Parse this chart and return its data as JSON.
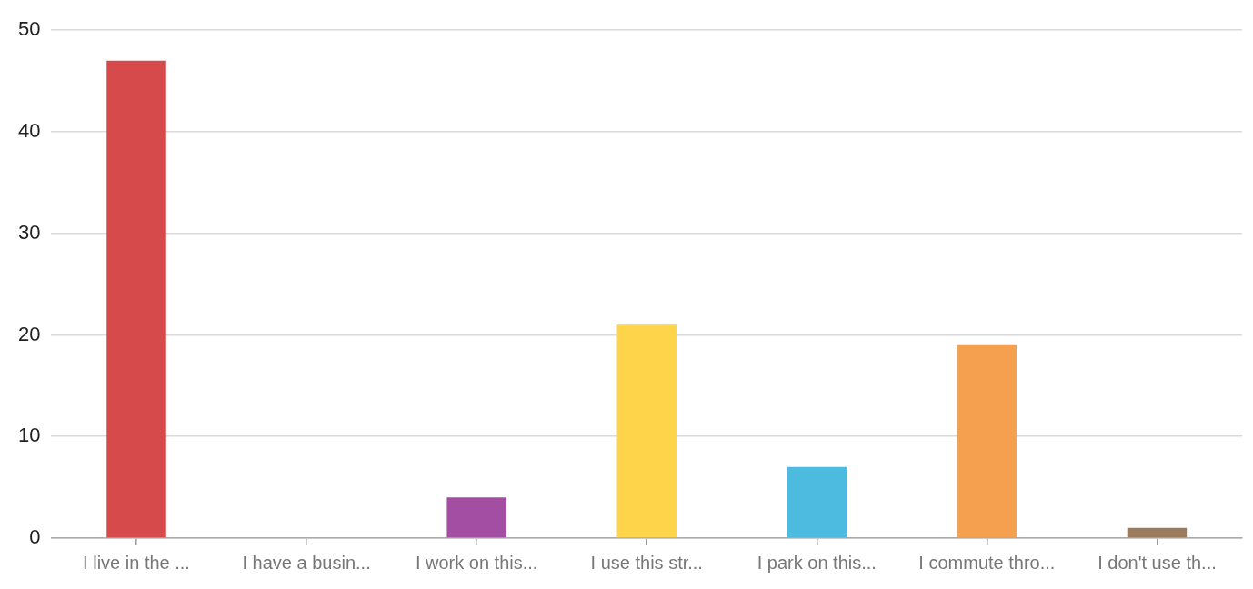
{
  "chart_data": {
    "type": "bar",
    "categories": [
      "I live in the ...",
      "I have a busin...",
      "I work on this...",
      "I use this str...",
      "I park on this...",
      "I commute thro...",
      "I don't use th..."
    ],
    "values": [
      47,
      0,
      4,
      21,
      7,
      19,
      1
    ],
    "colors": [
      "#d64a4b",
      "#a44ea3",
      "#a44ea3",
      "#fed54a",
      "#4dbae0",
      "#f5a04e",
      "#9c7b5d"
    ],
    "ylim": [
      0,
      50
    ],
    "yticks": [
      0,
      10,
      20,
      30,
      40,
      50
    ],
    "grid": "y",
    "legend": false
  }
}
